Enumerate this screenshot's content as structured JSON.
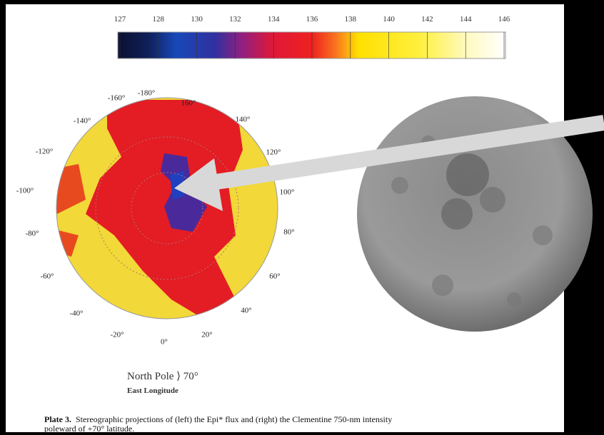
{
  "colorbar": {
    "ticks": [
      127,
      128,
      130,
      132,
      134,
      136,
      138,
      140,
      142,
      144,
      146
    ]
  },
  "map_labels": [
    "-180°",
    "160°",
    "-160°",
    "140°",
    "-140°",
    "120°",
    "-120°",
    "100°",
    "-100°",
    "80°",
    "-80°",
    "60°",
    "-60°",
    "40°",
    "-40°",
    "20°",
    "-20°",
    "0°"
  ],
  "projection": {
    "title": "North Pole ⟩ 70°",
    "subtitle": "East Longitude"
  },
  "caption": {
    "label": "Plate 3.",
    "text": "Stereographic projections of (left) the Epi* flux and (right) the Clementine 750-nm intensity poleward of +70° latitude."
  }
}
